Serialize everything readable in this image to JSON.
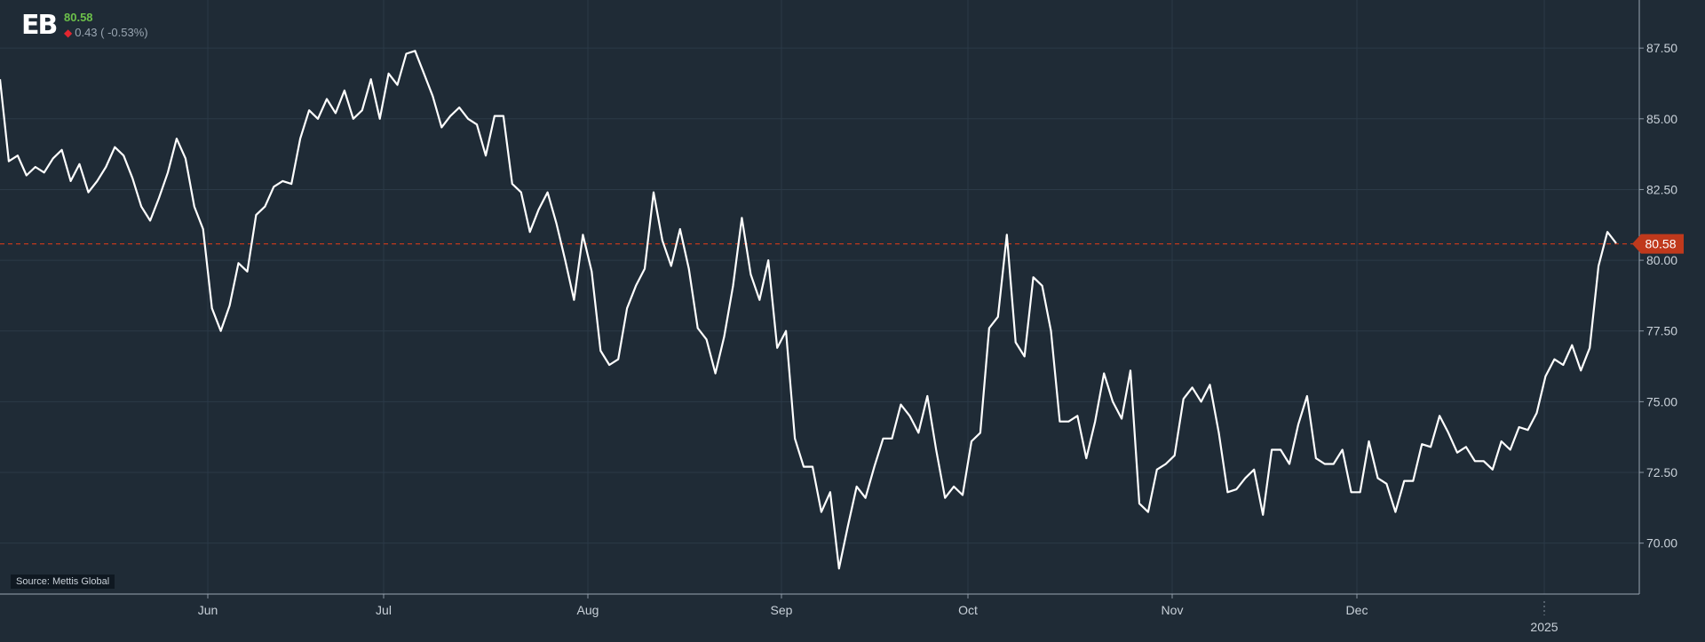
{
  "header": {
    "logo_text": "EB",
    "last_price": "80.58",
    "change_text": "0.43 ( -0.53%)",
    "change_arrow": "down-diamond-icon",
    "change_color": "#e3262f",
    "price_color": "#6cc04a"
  },
  "source_label": "Source: Mettis Global",
  "chart_data": {
    "type": "line",
    "title": "",
    "xlabel": "",
    "ylabel": "",
    "x_axis_labels": [
      "Jun",
      "Jul",
      "Aug",
      "Sep",
      "Oct",
      "Nov",
      "Dec"
    ],
    "year_label": "2025",
    "y_ticks": [
      "70.00",
      "72.50",
      "75.00",
      "77.50",
      "80.00",
      "82.50",
      "85.00",
      "87.50"
    ],
    "ylim": [
      68.2,
      89.2
    ],
    "last_value_label": "80.58",
    "last_value": 80.58,
    "reference_line": 80.58,
    "line_color": "#ffffff",
    "reference_color": "#c0391c",
    "grid": true,
    "series": [
      {
        "values": [
          86.4,
          83.5,
          83.7,
          83.0,
          83.3,
          83.1,
          83.6,
          83.9,
          82.8,
          83.4,
          82.4,
          82.8,
          83.3,
          84.0,
          83.7,
          82.9,
          81.9,
          81.4,
          82.2,
          83.1,
          84.3,
          83.6,
          81.9,
          81.1,
          78.3,
          77.5,
          78.4,
          79.9,
          79.6,
          81.6,
          81.9,
          82.6,
          82.8,
          82.7,
          84.3,
          85.3,
          85.0,
          85.7,
          85.2,
          86.0,
          85.0,
          85.3,
          86.4,
          85.0,
          86.6,
          86.2,
          87.3,
          87.4,
          86.6,
          85.8,
          84.7,
          85.1,
          85.4,
          85.0,
          84.8,
          83.7,
          85.1,
          85.1,
          82.7,
          82.4,
          81.0,
          81.8,
          82.4,
          81.3,
          80.0,
          78.6,
          80.9,
          79.6,
          76.8,
          76.3,
          76.5,
          78.3,
          79.1,
          79.7,
          82.4,
          80.7,
          79.8,
          81.1,
          79.7,
          77.6,
          77.2,
          76.0,
          77.3,
          79.1,
          81.5,
          79.5,
          78.6,
          80.0,
          76.9,
          77.5,
          73.7,
          72.7,
          72.7,
          71.1,
          71.8,
          69.1,
          70.6,
          72.0,
          71.6,
          72.7,
          73.7,
          73.7,
          74.9,
          74.5,
          73.9,
          75.2,
          73.3,
          71.6,
          72.0,
          71.7,
          73.6,
          73.9,
          77.6,
          78.0,
          80.9,
          77.1,
          76.6,
          79.4,
          79.1,
          77.5,
          74.3,
          74.3,
          74.5,
          73.0,
          74.3,
          76.0,
          75.0,
          74.4,
          76.1,
          71.4,
          71.1,
          72.6,
          72.8,
          73.1,
          75.1,
          75.5,
          75.0,
          75.6,
          73.9,
          71.8,
          71.9,
          72.3,
          72.6,
          71.0,
          73.3,
          73.3,
          72.8,
          74.2,
          75.2,
          73.0,
          72.8,
          72.8,
          73.3,
          71.8,
          71.8,
          73.6,
          72.3,
          72.1,
          71.1,
          72.2,
          72.2,
          73.5,
          73.4,
          74.5,
          73.9,
          73.2,
          73.4,
          72.9,
          72.9,
          72.6,
          73.6,
          73.3,
          74.1,
          74.0,
          74.6,
          75.9,
          76.5,
          76.3,
          77.0,
          76.1,
          76.9,
          79.8,
          81.0,
          80.6
        ]
      }
    ]
  }
}
